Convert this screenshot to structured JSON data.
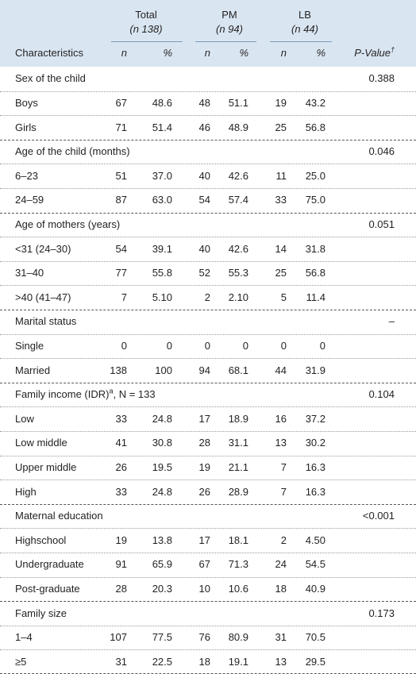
{
  "table": {
    "groups": [
      {
        "name": "Total",
        "sub": "(n 138)"
      },
      {
        "name": "PM",
        "sub": "(n 94)"
      },
      {
        "name": "LB",
        "sub": "(n 44)"
      }
    ],
    "columns": [
      "Characteristics",
      "n",
      "%",
      "n",
      "%",
      "n",
      "%"
    ],
    "pvalue_header": {
      "label": "P-Value",
      "mark": "†"
    },
    "sections": [
      {
        "label": "Sex of the child",
        "p": "0.388",
        "rows": [
          [
            "Boys",
            "67",
            "48.6",
            "48",
            "51.1",
            "19",
            "43.2"
          ],
          [
            "Girls",
            "71",
            "51.4",
            "46",
            "48.9",
            "25",
            "56.8"
          ]
        ]
      },
      {
        "label": "Age of the child (months)",
        "p": "0.046",
        "rows": [
          [
            "6–23",
            "51",
            "37.0",
            "40",
            "42.6",
            "11",
            "25.0"
          ],
          [
            "24–59",
            "87",
            "63.0",
            "54",
            "57.4",
            "33",
            "75.0"
          ]
        ]
      },
      {
        "label": "Age of mothers (years)",
        "p": "0.051",
        "rows": [
          [
            "<31 (24–30)",
            "54",
            "39.1",
            "40",
            "42.6",
            "14",
            "31.8"
          ],
          [
            "31–40",
            "77",
            "55.8",
            "52",
            "55.3",
            "25",
            "56.8"
          ],
          [
            ">40 (41–47)",
            "7",
            "5.10",
            "2",
            "2.10",
            "5",
            "11.4"
          ]
        ]
      },
      {
        "label": "Marital status",
        "p": "–",
        "rows": [
          [
            "Single",
            "0",
            "0",
            "0",
            "0",
            "0",
            "0"
          ],
          [
            "Married",
            "138",
            "100",
            "94",
            "68.1",
            "44",
            "31.9"
          ]
        ]
      },
      {
        "label": "Family income (IDR)",
        "sup": "a",
        "suffix": ", N = 133",
        "p": "0.104",
        "rows": [
          [
            "Low",
            "33",
            "24.8",
            "17",
            "18.9",
            "16",
            "37.2"
          ],
          [
            "Low middle",
            "41",
            "30.8",
            "28",
            "31.1",
            "13",
            "30.2"
          ],
          [
            "Upper middle",
            "26",
            "19.5",
            "19",
            "21.1",
            "7",
            "16.3"
          ],
          [
            "High",
            "33",
            "24.8",
            "26",
            "28.9",
            "7",
            "16.3"
          ]
        ]
      },
      {
        "label": "Maternal education",
        "p": "<0.001",
        "rows": [
          [
            "Highschool",
            "19",
            "13.8",
            "17",
            "18.1",
            "2",
            "4.50"
          ],
          [
            "Undergraduate",
            "91",
            "65.9",
            "67",
            "71.3",
            "24",
            "54.5"
          ],
          [
            "Post-graduate",
            "28",
            "20.3",
            "10",
            "10.6",
            "18",
            "40.9"
          ]
        ]
      },
      {
        "label": "Family size",
        "p": "0.173",
        "rows": [
          [
            "1–4",
            "107",
            "77.5",
            "76",
            "80.9",
            "31",
            "70.5"
          ],
          [
            "≥5",
            "31",
            "22.5",
            "18",
            "19.1",
            "13",
            "29.5"
          ]
        ]
      }
    ]
  }
}
